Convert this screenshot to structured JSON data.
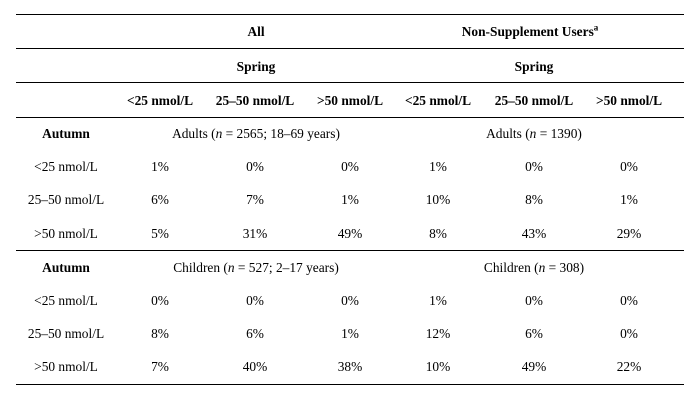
{
  "header": {
    "group_all": "All",
    "group_nonsupp": "Non-Supplement Users",
    "group_nonsupp_footnote": "a",
    "season_all": "Spring",
    "season_nonsupp": "Spring",
    "columns": [
      "<25 nmol/L",
      "25–50 nmol/L",
      ">50 nmol/L",
      "<25 nmol/L",
      "25–50 nmol/L",
      ">50 nmol/L"
    ]
  },
  "sections": [
    {
      "row_label": "Autumn",
      "all_caption": {
        "prefix": "Adults (",
        "n": "n",
        "suffix": " = 2565; 18–69 years)"
      },
      "nonsupp_caption": {
        "prefix": "Adults (",
        "n": "n",
        "suffix": " = 1390)"
      },
      "rows": [
        {
          "label": "<25 nmol/L",
          "values": [
            "1%",
            "0%",
            "0%",
            "1%",
            "0%",
            "0%"
          ]
        },
        {
          "label": "25–50 nmol/L",
          "values": [
            "6%",
            "7%",
            "1%",
            "10%",
            "8%",
            "1%"
          ]
        },
        {
          "label": ">50 nmol/L",
          "values": [
            "5%",
            "31%",
            "49%",
            "8%",
            "43%",
            "29%"
          ]
        }
      ]
    },
    {
      "row_label": "Autumn",
      "all_caption": {
        "prefix": "Children (",
        "n": "n",
        "suffix": " = 527; 2–17 years)"
      },
      "nonsupp_caption": {
        "prefix": "Children (",
        "n": "n",
        "suffix": " = 308)"
      },
      "rows": [
        {
          "label": "<25 nmol/L",
          "values": [
            "0%",
            "0%",
            "0%",
            "1%",
            "0%",
            "0%"
          ]
        },
        {
          "label": "25–50 nmol/L",
          "values": [
            "8%",
            "6%",
            "1%",
            "12%",
            "6%",
            "0%"
          ]
        },
        {
          "label": ">50 nmol/L",
          "values": [
            "7%",
            "40%",
            "38%",
            "10%",
            "49%",
            "22%"
          ]
        }
      ]
    }
  ]
}
